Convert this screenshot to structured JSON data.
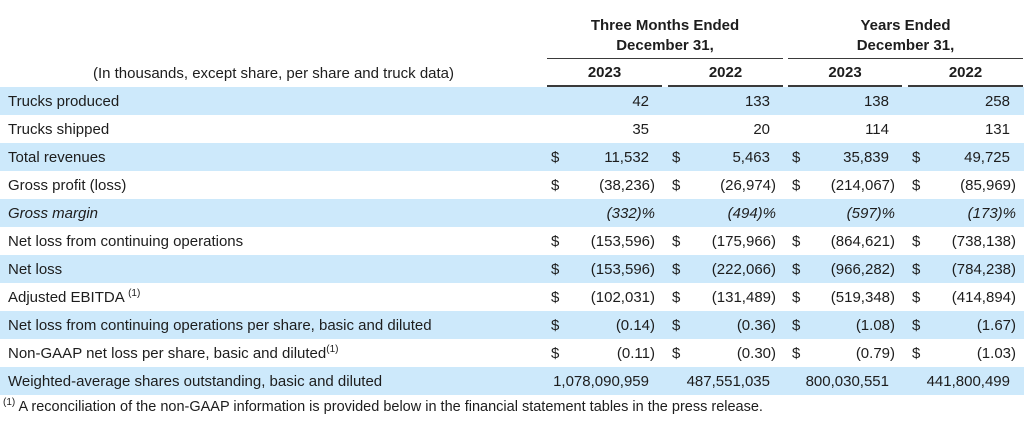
{
  "table": {
    "unit_note": "(In thousands, except share, per share and truck data)",
    "col_groups": [
      {
        "line1": "Three Months Ended",
        "line2": "December 31,",
        "years": [
          "2023",
          "2022"
        ]
      },
      {
        "line1": "Years Ended",
        "line2": "December 31,",
        "years": [
          "2023",
          "2022"
        ]
      }
    ],
    "rows": [
      {
        "label": "Trucks produced",
        "sup": "",
        "dollar": "",
        "italic": false,
        "values": [
          "42",
          "133",
          "138",
          "258"
        ]
      },
      {
        "label": "Trucks shipped",
        "sup": "",
        "dollar": "",
        "italic": false,
        "values": [
          "35",
          "20",
          "114",
          "131"
        ]
      },
      {
        "label": "Total revenues",
        "sup": "",
        "dollar": "$",
        "italic": false,
        "values": [
          "11,532",
          "5,463",
          "35,839",
          "49,725"
        ]
      },
      {
        "label": "Gross profit (loss)",
        "sup": "",
        "dollar": "$",
        "italic": false,
        "values": [
          "(38,236)",
          "(26,974)",
          "(214,067)",
          "(85,969)"
        ]
      },
      {
        "label": "Gross margin",
        "sup": "",
        "dollar": "",
        "italic": true,
        "values": [
          "(332)%",
          "(494)%",
          "(597)%",
          "(173)%"
        ]
      },
      {
        "label": "Net loss from continuing operations",
        "sup": "",
        "dollar": "$",
        "italic": false,
        "values": [
          "(153,596)",
          "(175,966)",
          "(864,621)",
          "(738,138)"
        ]
      },
      {
        "label": "Net loss",
        "sup": "",
        "dollar": "$",
        "italic": false,
        "values": [
          "(153,596)",
          "(222,066)",
          "(966,282)",
          "(784,238)"
        ]
      },
      {
        "label": "Adjusted EBITDA ",
        "sup": "(1)",
        "dollar": "$",
        "italic": false,
        "values": [
          "(102,031)",
          "(131,489)",
          "(519,348)",
          "(414,894)"
        ]
      },
      {
        "label": "Net loss from continuing operations per share, basic and diluted",
        "sup": "",
        "dollar": "$",
        "italic": false,
        "values": [
          "(0.14)",
          "(0.36)",
          "(1.08)",
          "(1.67)"
        ]
      },
      {
        "label": "Non-GAAP net loss per share, basic and diluted",
        "sup": "(1)",
        "dollar": "$",
        "italic": false,
        "values": [
          "(0.11)",
          "(0.30)",
          "(0.79)",
          "(1.03)"
        ]
      },
      {
        "label": "Weighted-average shares outstanding, basic and diluted",
        "sup": "",
        "dollar": "",
        "italic": false,
        "values": [
          "1,078,090,959",
          "487,551,035",
          "800,030,551",
          "441,800,499"
        ]
      }
    ]
  },
  "footnote": {
    "sup": "(1)",
    "text": "A reconciliation of the non-GAAP information is provided below in the financial statement tables in the press release."
  },
  "colors": {
    "row_highlight": "#cde9fb",
    "rule": "#3a3a3a",
    "text": "#1d1d1d"
  }
}
